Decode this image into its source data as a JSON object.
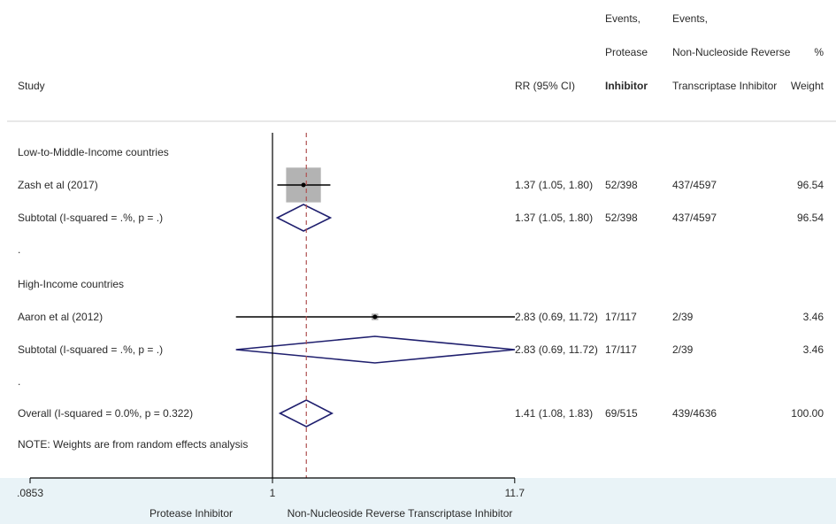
{
  "chart_data": {
    "type": "forest",
    "columns": {
      "study": "Study",
      "rr": "RR (95% CI)",
      "events_pi": [
        "Events,",
        "Protease",
        "Inhibitor"
      ],
      "events_nnrti": [
        "Events,",
        "Non-Nucleoside Reverse",
        "Transcriptase Inhibitor"
      ],
      "weight": [
        "%",
        "Weight"
      ]
    },
    "rows": [
      {
        "kind": "group",
        "label": "Low-to-Middle-Income countries"
      },
      {
        "kind": "study",
        "label": "Zash et al (2017)",
        "rr": 1.37,
        "lo": 1.05,
        "hi": 1.8,
        "ci_text": "1.37 (1.05, 1.80)",
        "events_pi": "52/398",
        "events_nnrti": "437/4597",
        "weight": "96.54",
        "weight_value": 96.54
      },
      {
        "kind": "subtotal",
        "label": "Subtotal  (I-squared = .%, p = .)",
        "rr": 1.37,
        "lo": 1.05,
        "hi": 1.8,
        "ci_text": "1.37 (1.05, 1.80)",
        "events_pi": "52/398",
        "events_nnrti": "437/4597",
        "weight": "96.54"
      },
      {
        "kind": "spacer",
        "label": "."
      },
      {
        "kind": "group",
        "label": "High-Income countries"
      },
      {
        "kind": "study",
        "label": "Aaron et al (2012)",
        "rr": 2.83,
        "lo": 0.69,
        "hi": 11.72,
        "ci_text": "2.83 (0.69, 11.72)",
        "events_pi": "17/117",
        "events_nnrti": "2/39",
        "weight": "3.46",
        "weight_value": 3.46
      },
      {
        "kind": "subtotal",
        "label": "Subtotal  (I-squared = .%, p = .)",
        "rr": 2.83,
        "lo": 0.69,
        "hi": 11.72,
        "ci_text": "2.83 (0.69, 11.72)",
        "events_pi": "17/117",
        "events_nnrti": "2/39",
        "weight": "3.46"
      },
      {
        "kind": "spacer",
        "label": "."
      },
      {
        "kind": "overall",
        "label": "Overall  (I-squared = 0.0%, p = 0.322)",
        "rr": 1.41,
        "lo": 1.08,
        "hi": 1.83,
        "ci_text": "1.41 (1.08, 1.83)",
        "events_pi": "69/515",
        "events_nnrti": "439/4636",
        "weight": "100.00"
      },
      {
        "kind": "note",
        "label": "NOTE: Weights are from random effects analysis"
      }
    ],
    "x_axis": {
      "scale": "log",
      "ticks": [
        {
          "value": 0.0853,
          "label": ".0853"
        },
        {
          "value": 1,
          "label": "1"
        },
        {
          "value": 11.7,
          "label": "11.7"
        }
      ],
      "range": [
        0.0853,
        11.72
      ],
      "null_line": 1,
      "left_label": "Protease Inhibitor",
      "right_label": "Non-Nucleoside Reverse Transcriptase Inhibitor"
    },
    "colors": {
      "diamond": "#1f1f6e",
      "weight_box": "#b3b3b3",
      "axis_band": "#e9f3f7",
      "line": "#000000",
      "text": "#2a2a2a"
    }
  }
}
